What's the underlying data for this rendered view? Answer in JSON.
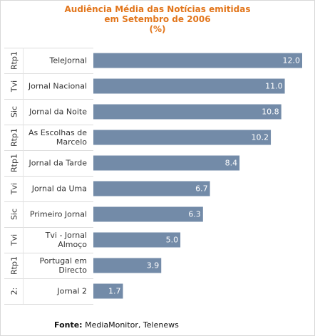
{
  "chart_data": {
    "type": "bar",
    "orientation": "horizontal",
    "title_lines": [
      "Audiência Média das Notícias emitidas",
      "em Setembro de 2006",
      "(%)"
    ],
    "xlabel": "",
    "ylabel": "",
    "xlim": [
      0,
      12.0
    ],
    "grid": false,
    "legend": "none",
    "bar_color": "#738ba8",
    "categories": [
      {
        "channel": "Rtp1",
        "label": [
          "TeleJornal"
        ]
      },
      {
        "channel": "Tvi",
        "label": [
          "Jornal Nacional"
        ]
      },
      {
        "channel": "Sic",
        "label": [
          "Jornal da Noite"
        ]
      },
      {
        "channel": "Rtp1",
        "label": [
          "As Escolhas de",
          "Marcelo"
        ]
      },
      {
        "channel": "Rtp1",
        "label": [
          "Jornal da Tarde"
        ]
      },
      {
        "channel": "Tvi",
        "label": [
          "Jornal da Uma"
        ]
      },
      {
        "channel": "Sic",
        "label": [
          "Primeiro Jornal"
        ]
      },
      {
        "channel": "Tvi",
        "label": [
          "Tvi - Jornal",
          "Almoço"
        ]
      },
      {
        "channel": "Rtp1",
        "label": [
          "Portugal em",
          "Directo"
        ]
      },
      {
        "channel": "2:",
        "label": [
          "Jornal 2"
        ]
      }
    ],
    "values": [
      12.0,
      11.0,
      10.8,
      10.2,
      8.4,
      6.7,
      6.3,
      5.0,
      3.9,
      1.7
    ],
    "value_labels": [
      "12.0",
      "11.0",
      "10.8",
      "10.2",
      "8.4",
      "6.7",
      "6.3",
      "5.0",
      "3.9",
      "1.7"
    ]
  },
  "source": {
    "prefix": "Fonte:",
    "text": " MediaMonitor, Telenews"
  }
}
